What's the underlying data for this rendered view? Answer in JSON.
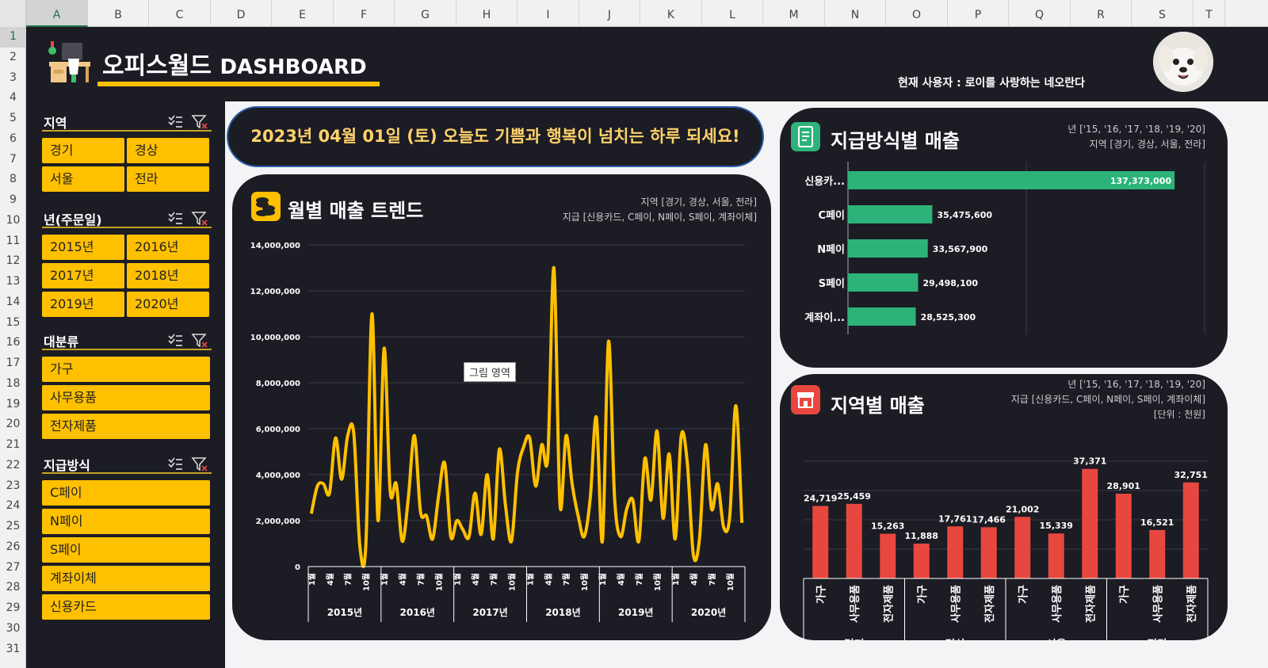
{
  "columns": [
    "A",
    "B",
    "C",
    "D",
    "E",
    "F",
    "G",
    "H",
    "I",
    "J",
    "K",
    "L",
    "M",
    "N",
    "O",
    "P",
    "Q",
    "R",
    "S",
    "T"
  ],
  "rows": [
    "1",
    "2",
    "3",
    "4",
    "5",
    "6",
    "7",
    "8",
    "9",
    "10",
    "11",
    "12",
    "13",
    "14",
    "15",
    "16",
    "17",
    "18",
    "19",
    "20",
    "21",
    "22",
    "23",
    "24",
    "25",
    "26",
    "27",
    "28",
    "29",
    "30",
    "31"
  ],
  "header": {
    "title_ko": "오피스월드",
    "title_en": "DASHBOARD",
    "user_text": "현재 사용자 : 로이를 사랑하는 네오란다"
  },
  "slicers": [
    {
      "title": "지역",
      "items": [
        "경기",
        "경상",
        "서울",
        "전라"
      ]
    },
    {
      "title": "년(주문일)",
      "items": [
        "2015년",
        "2016년",
        "2017년",
        "2018년",
        "2019년",
        "2020년"
      ]
    },
    {
      "title": "대분류",
      "items": [
        "가구",
        "사무용품",
        "전자제품"
      ]
    },
    {
      "title": "지급방식",
      "items": [
        "C페이",
        "N페이",
        "S페이",
        "계좌이체",
        "신용카드"
      ]
    }
  ],
  "greeting": "2023년 04월 01일 (토)  오늘도 기쁨과 행복이 넘치는 하루 되세요!",
  "trend": {
    "title": "월별 매출 트렌드",
    "info1": "지역 [경기, 경상, 서울, 전라]",
    "info2": "지급 [신용카드, C페이, N페이, S페이, 계좌이체]",
    "tooltip": "그림 영역"
  },
  "payment": {
    "title": "지급방식별 매출",
    "info1": "년 ['15, '16, '17, '18, '19, '20]",
    "info2": "지역 [경기, 경상, 서울, 전라]"
  },
  "region": {
    "title": "지역별 매출",
    "info1": "년 ['15, '16, '17, '18, '19, '20]",
    "info2": "지급 [신용카드, C페이, N페이, S페이, 계좌이체]",
    "info3": "[단위 : 천원]"
  },
  "colors": {
    "accent": "#ffc000",
    "line": "#ffc000",
    "payment_bar": "#2db37a",
    "region_bar": "#e8473f",
    "bg": "#1c1c24"
  },
  "chart_data": [
    {
      "type": "line",
      "title": "월별 매출 트렌드",
      "years": [
        "2015년",
        "2016년",
        "2017년",
        "2018년",
        "2019년",
        "2020년"
      ],
      "month_labels": [
        "1월",
        "4월",
        "7월",
        "10월"
      ],
      "yticks": [
        "14,000,000",
        "12,000,000",
        "10,000,000",
        "8,000,000",
        "6,000,000",
        "4,000,000",
        "2,000,000",
        "0"
      ],
      "ylim": [
        0,
        14000000
      ],
      "values": [
        2300000,
        3500000,
        3600000,
        3200000,
        5600000,
        3800000,
        5700000,
        5800000,
        900000,
        1000000,
        11000000,
        2000000,
        9500000,
        3300000,
        3600000,
        1100000,
        3000000,
        5700000,
        2400000,
        2200000,
        1200000,
        3100000,
        4500000,
        1300000,
        2000000,
        1600000,
        1300000,
        3200000,
        1400000,
        4000000,
        1200000,
        5100000,
        2700000,
        1100000,
        4100000,
        5200000,
        5600000,
        3500000,
        5300000,
        4800000,
        13000000,
        2700000,
        5700000,
        3600000,
        2200000,
        1300000,
        3000000,
        6500000,
        1100000,
        9800000,
        3000000,
        1300000,
        2500000,
        2900000,
        1100000,
        4700000,
        2900000,
        5900000,
        2100000,
        4900000,
        1200000,
        5700000,
        4500000,
        500000,
        1200000,
        5300000,
        2500000,
        3600000,
        1700000,
        2200000,
        7000000,
        1900000
      ],
      "grid": true
    },
    {
      "type": "bar",
      "orientation": "horizontal",
      "title": "지급방식별 매출",
      "categories": [
        "신용카...",
        "C페이",
        "N페이",
        "S페이",
        "계좌이..."
      ],
      "values": [
        137373000,
        35475600,
        33567900,
        29498100,
        28525300
      ],
      "labels": [
        "137,373,000",
        "35,475,600",
        "33,567,900",
        "29,498,100",
        "28,525,300"
      ]
    },
    {
      "type": "bar",
      "title": "지역별 매출",
      "groups": [
        "경기",
        "경상",
        "서울",
        "전라"
      ],
      "categories": [
        "가구",
        "사무용품",
        "전자제품"
      ],
      "values": [
        [
          24719,
          25459,
          15263
        ],
        [
          11888,
          17761,
          17466
        ],
        [
          21002,
          15339,
          37371
        ],
        [
          28901,
          16521,
          32751
        ]
      ],
      "labels": [
        [
          "24,719",
          "25,459",
          "15,263"
        ],
        [
          "11,888",
          "17,761",
          "17,466"
        ],
        [
          "21,002",
          "15,339",
          "37,371"
        ],
        [
          "28,901",
          "16,521",
          "32,751"
        ]
      ]
    }
  ]
}
